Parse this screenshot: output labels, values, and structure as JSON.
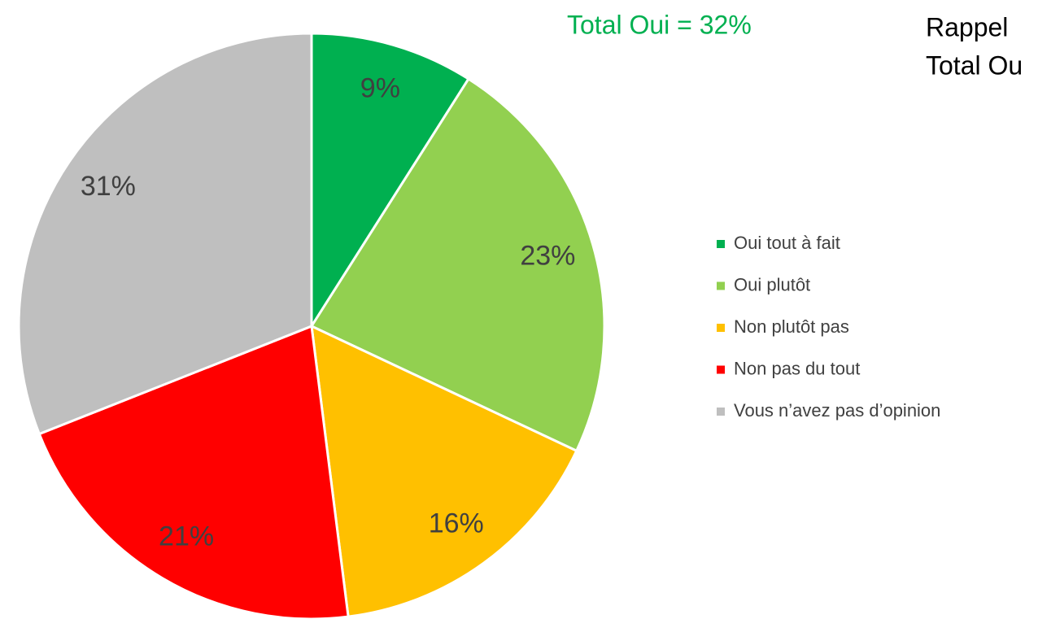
{
  "chart_data": {
    "type": "pie",
    "annotations": [
      "Total Oui = 32%",
      "Rappel",
      "Total Ou"
    ],
    "categories": [
      "Oui tout à fait",
      "Oui plutôt",
      "Non plutôt pas",
      "Non pas du tout",
      "Vous n’avez pas d’opinion"
    ],
    "values": [
      9,
      23,
      16,
      21,
      31
    ],
    "value_labels": [
      "9%",
      "23%",
      "16%",
      "21%",
      "31%"
    ],
    "colors": [
      "#00b050",
      "#92d050",
      "#ffc000",
      "#ff0000",
      "#bfbfbf"
    ],
    "legend": "right"
  }
}
